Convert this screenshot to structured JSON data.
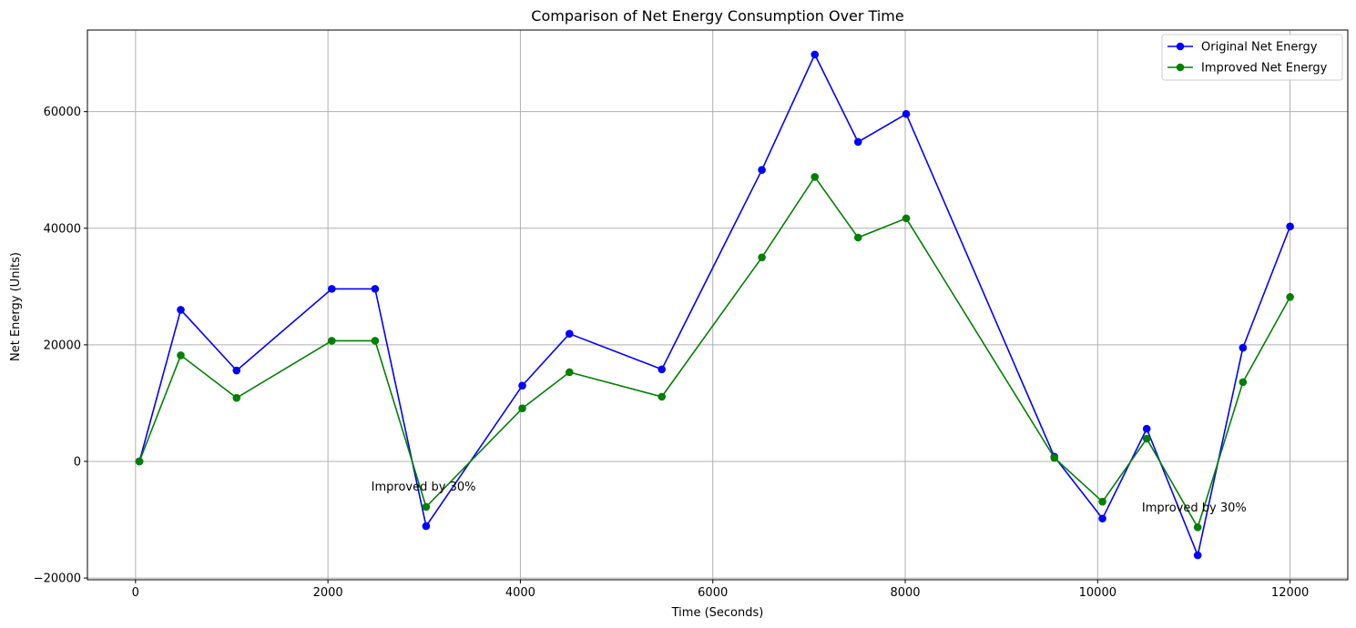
{
  "chart_data": {
    "type": "line",
    "title": "Comparison of Net Energy Consumption Over Time",
    "xlabel": "Time (Seconds)",
    "ylabel": "Net Energy (Units)",
    "xlim": [
      -500,
      12600
    ],
    "ylim": [
      -20300,
      74000
    ],
    "x_ticks": [
      0,
      2000,
      4000,
      6000,
      8000,
      10000,
      12000
    ],
    "x_tick_labels": [
      "0",
      "2000",
      "4000",
      "6000",
      "8000",
      "10000",
      "12000"
    ],
    "y_ticks": [
      -20000,
      0,
      20000,
      40000,
      60000
    ],
    "y_tick_labels": [
      "−20000",
      "0",
      "20000",
      "40000",
      "60000"
    ],
    "grid": true,
    "legend_position": "top-right",
    "x": [
      40,
      470,
      1050,
      2040,
      2490,
      3020,
      4020,
      4510,
      5470,
      6510,
      7060,
      7510,
      8010,
      9550,
      10050,
      10510,
      11040,
      11510,
      12000
    ],
    "series": [
      {
        "name": "Original Net Energy",
        "color": "#0000ff",
        "values": [
          0,
          26000,
          15600,
          29600,
          29600,
          -11100,
          13000,
          21900,
          15800,
          50000,
          69800,
          54800,
          59600,
          800,
          -9800,
          5600,
          -16100,
          19500,
          40300
        ]
      },
      {
        "name": "Improved Net Energy",
        "color": "#008000",
        "values": [
          0,
          18200,
          10900,
          20700,
          20700,
          -7800,
          9100,
          15300,
          11100,
          35000,
          48800,
          38400,
          41700,
          600,
          -6900,
          3900,
          -11300,
          13600,
          28200
        ]
      }
    ],
    "annotations": [
      {
        "text": "Improved by 30%",
        "x": 2450,
        "y": -5000
      },
      {
        "text": "Improved by 30%",
        "x": 10460,
        "y": -8600
      }
    ]
  }
}
